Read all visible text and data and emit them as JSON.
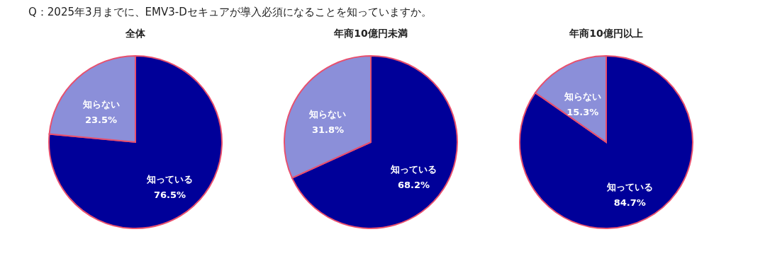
{
  "chart_data": [
    {
      "type": "pie",
      "title": "全体",
      "annotations": [
        "Q：2025年3月までに、EMV3-Dセキュアが導入必須になることを知っていますか。"
      ],
      "categories": [
        "知っている",
        "知らない"
      ],
      "values": [
        76.5,
        23.5
      ],
      "colors": [
        "#000099",
        "#8b8fd9"
      ],
      "value_labels": [
        "76.5%",
        "23.5%"
      ],
      "legend": false
    },
    {
      "type": "pie",
      "title": "年商10億円未満",
      "categories": [
        "知っている",
        "知らない"
      ],
      "values": [
        68.2,
        31.8
      ],
      "colors": [
        "#000099",
        "#8b8fd9"
      ],
      "value_labels": [
        "68.2%",
        "31.8%"
      ],
      "legend": false
    },
    {
      "type": "pie",
      "title": "年商10億円以上",
      "categories": [
        "知っている",
        "知らない"
      ],
      "values": [
        84.7,
        15.3
      ],
      "colors": [
        "#000099",
        "#8b8fd9"
      ],
      "value_labels": [
        "84.7%",
        "15.3%"
      ],
      "legend": false
    }
  ]
}
